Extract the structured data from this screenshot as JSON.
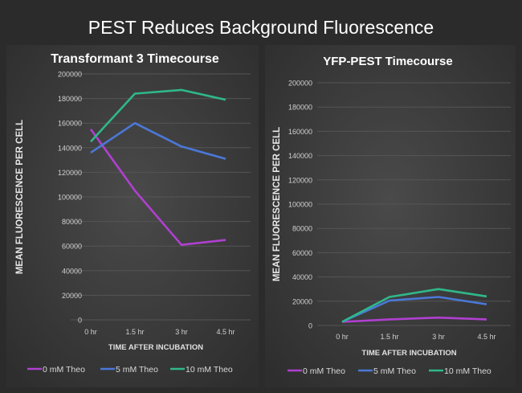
{
  "title": "PEST Reduces Background Fluorescence",
  "colors": {
    "0 mM Theo": "#b040d0",
    "5 mM Theo": "#4a78d8",
    "10 mM Theo": "#2fb88a"
  },
  "chart_data": [
    {
      "type": "line",
      "title": "Transformant 3 Timecourse",
      "xlabel": "TIME AFTER INCUBATION",
      "ylabel": "MEAN FLUORESCENCE PER CELL",
      "categories": [
        "0 hr",
        "1.5 hr",
        "3 hr",
        "4.5 hr"
      ],
      "ylim": [
        0,
        200000
      ],
      "yticks": [
        0,
        20000,
        40000,
        60000,
        80000,
        100000,
        120000,
        140000,
        160000,
        180000,
        200000
      ],
      "grid": true,
      "legend": "bottom",
      "series": [
        {
          "name": "0 mM Theo",
          "values": [
            155000,
            105000,
            61000,
            65000
          ]
        },
        {
          "name": "5 mM Theo",
          "values": [
            136000,
            160000,
            141000,
            131000
          ]
        },
        {
          "name": "10 mM Theo",
          "values": [
            145000,
            184000,
            187000,
            179000
          ]
        }
      ]
    },
    {
      "type": "line",
      "title": "YFP-PEST Timecourse",
      "xlabel": "TIME AFTER INCUBATION",
      "ylabel": "MEAN FLUORESCENCE PER CELL",
      "categories": [
        "0 hr",
        "1.5 hr",
        "3 hr",
        "4.5 hr"
      ],
      "ylim": [
        0,
        200000
      ],
      "yticks": [
        0,
        20000,
        40000,
        60000,
        80000,
        100000,
        120000,
        140000,
        160000,
        180000,
        200000
      ],
      "grid": true,
      "legend": "bottom",
      "series": [
        {
          "name": "0 mM Theo",
          "values": [
            3000,
            5000,
            6500,
            5000
          ]
        },
        {
          "name": "5 mM Theo",
          "values": [
            3000,
            20500,
            23500,
            17500
          ]
        },
        {
          "name": "10 mM Theo",
          "values": [
            3000,
            23500,
            30000,
            24000
          ]
        }
      ]
    }
  ]
}
